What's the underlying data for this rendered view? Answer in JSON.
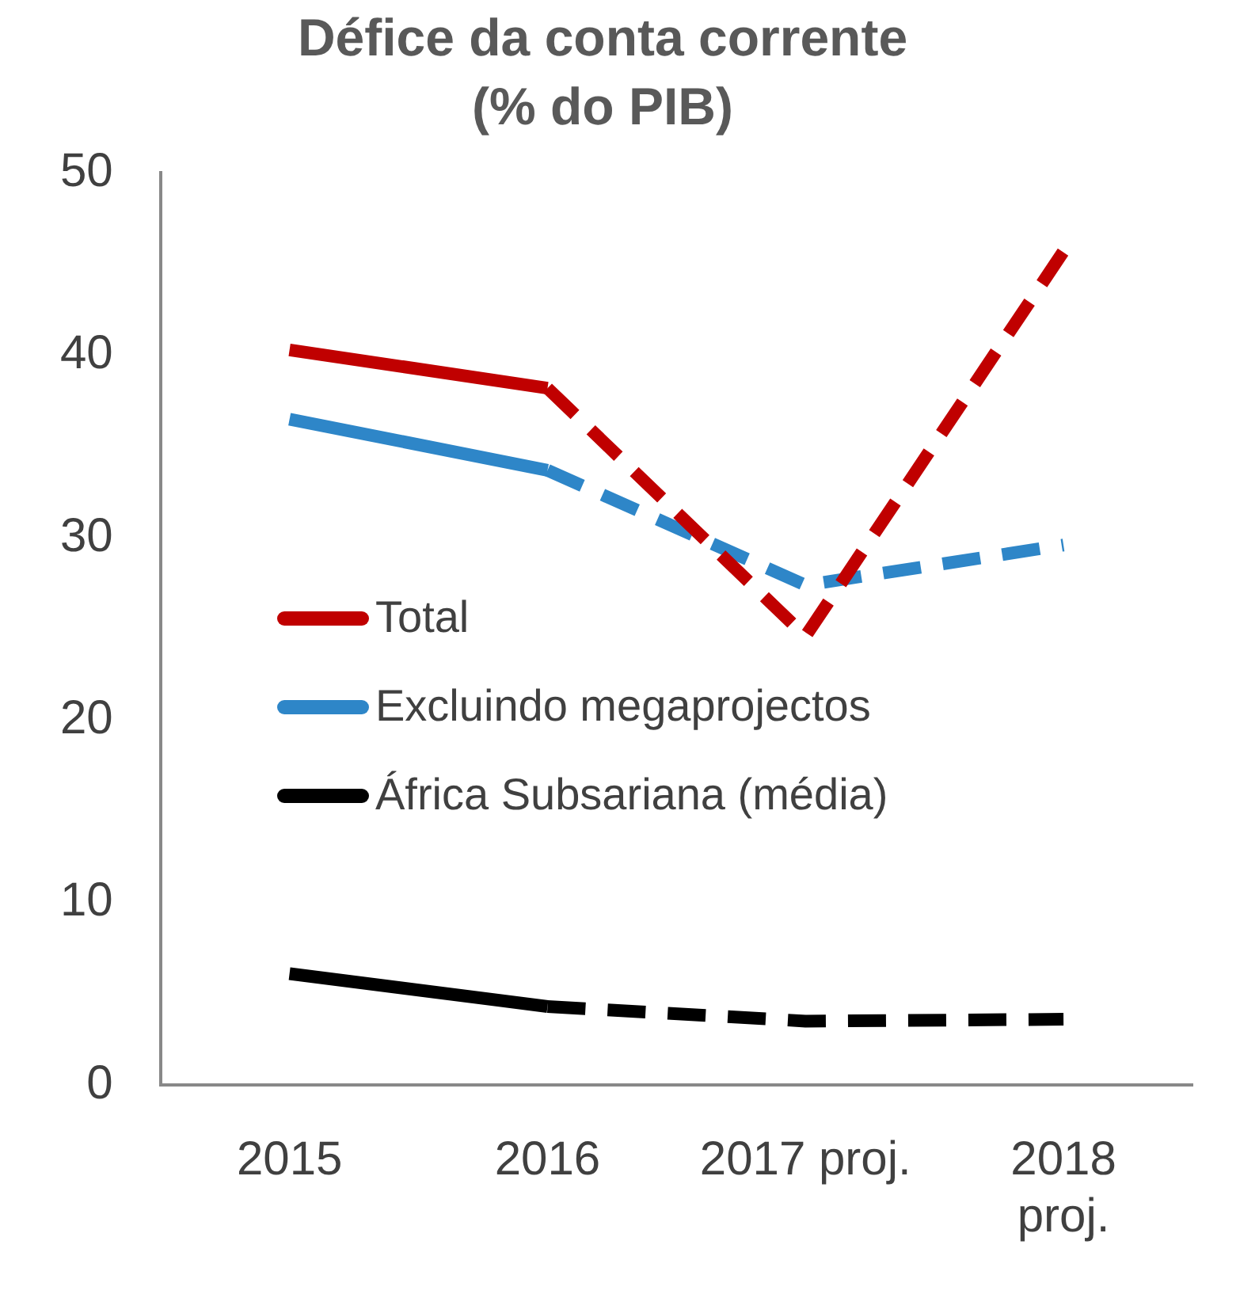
{
  "chart_data": {
    "type": "line",
    "title": "Défice da conta corrente",
    "subtitle": "(% do PIB)",
    "categories": [
      "2015",
      "2016",
      "2017 proj.",
      "2018 proj."
    ],
    "series": [
      {
        "name": "Total",
        "color": "#c00000",
        "line_style": "solid",
        "values": [
          40.3,
          38.2,
          null,
          null
        ]
      },
      {
        "color": "#c00000",
        "line_style": "dashed",
        "values": [
          null,
          38.2,
          24.6,
          45.7
        ]
      },
      {
        "name": "Excluindo megaprojectos",
        "color": "#2e86c8",
        "line_style": "solid",
        "values": [
          36.5,
          33.7,
          null,
          null
        ]
      },
      {
        "color": "#2e86c8",
        "line_style": "dashed",
        "values": [
          null,
          33.7,
          27.4,
          29.6
        ]
      },
      {
        "name": "África Subsariana (média)",
        "color": "#000000",
        "line_style": "solid",
        "values": [
          6.1,
          4.3,
          null,
          null
        ]
      },
      {
        "color": "#000000",
        "line_style": "dashed",
        "values": [
          null,
          4.3,
          3.5,
          3.6
        ]
      }
    ],
    "ylim": [
      0,
      50
    ],
    "yticks": [
      0,
      10,
      20,
      30,
      40,
      50
    ],
    "grid": false,
    "legend": "left"
  }
}
